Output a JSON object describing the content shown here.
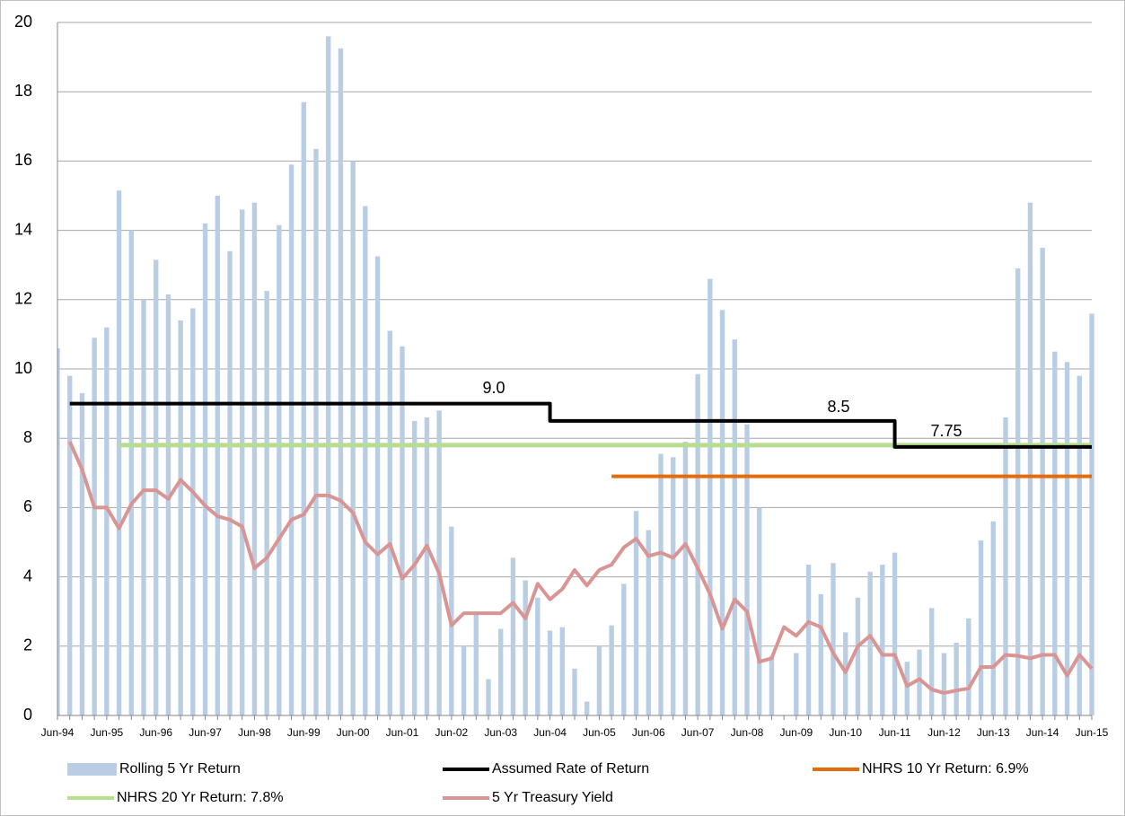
{
  "chart_data": {
    "type": "bar",
    "categories": [
      "Jun-94",
      null,
      null,
      null,
      "Jun-95",
      null,
      null,
      null,
      "Jun-96",
      null,
      null,
      null,
      "Jun-97",
      null,
      null,
      null,
      "Jun-98",
      null,
      null,
      null,
      "Jun-99",
      null,
      null,
      null,
      "Jun-00",
      null,
      null,
      null,
      "Jun-01",
      null,
      null,
      null,
      "Jun-02",
      null,
      null,
      null,
      "Jun-03",
      null,
      null,
      null,
      "Jun-04",
      null,
      null,
      null,
      "Jun-05",
      null,
      null,
      null,
      "Jun-06",
      null,
      null,
      null,
      "Jun-07",
      null,
      null,
      null,
      "Jun-08",
      null,
      null,
      null,
      "Jun-09",
      null,
      null,
      null,
      "Jun-10",
      null,
      null,
      null,
      "Jun-11",
      null,
      null,
      null,
      "Jun-12",
      null,
      null,
      null,
      "Jun-13",
      null,
      null,
      null,
      "Jun-14",
      null,
      null,
      null,
      "Jun-15"
    ],
    "series": [
      {
        "name": "Rolling 5 Yr Return",
        "type": "bar",
        "color": "#b9cde5",
        "values": [
          10.6,
          9.8,
          9.3,
          10.9,
          11.2,
          15.15,
          14.0,
          12.0,
          13.15,
          12.15,
          11.4,
          11.75,
          14.2,
          15.0,
          13.4,
          14.6,
          14.8,
          12.25,
          14.15,
          15.9,
          17.7,
          16.35,
          19.6,
          19.25,
          16.0,
          14.7,
          13.25,
          11.1,
          10.65,
          8.5,
          8.6,
          8.8,
          5.45,
          2.0,
          2.9,
          1.05,
          2.5,
          4.55,
          3.9,
          3.4,
          2.45,
          2.55,
          1.35,
          0.4,
          2.0,
          2.6,
          3.8,
          5.9,
          5.35,
          7.55,
          7.45,
          7.9,
          9.85,
          12.6,
          11.7,
          10.85,
          8.4,
          6.0,
          1.7,
          0,
          1.8,
          4.35,
          3.5,
          4.4,
          2.4,
          3.4,
          4.15,
          4.35,
          4.7,
          1.55,
          1.9,
          3.1,
          1.8,
          2.1,
          2.8,
          5.05,
          5.6,
          8.6,
          12.9,
          14.8,
          13.5,
          10.5,
          10.2,
          9.8,
          11.6
        ]
      },
      {
        "name": "Assumed Rate of Return",
        "type": "line",
        "step": "after",
        "color": "#000000",
        "values": [
          null,
          9,
          9,
          9,
          9,
          9,
          9,
          9,
          9,
          9,
          9,
          9,
          9,
          9,
          9,
          9,
          9,
          9,
          9,
          9,
          9,
          9,
          9,
          9,
          9,
          9,
          9,
          9,
          9,
          9,
          9,
          9,
          9,
          9,
          9,
          9,
          9,
          9,
          9,
          9,
          8.5,
          8.5,
          8.5,
          8.5,
          8.5,
          8.5,
          8.5,
          8.5,
          8.5,
          8.5,
          8.5,
          8.5,
          8.5,
          8.5,
          8.5,
          8.5,
          8.5,
          8.5,
          8.5,
          8.5,
          8.5,
          8.5,
          8.5,
          8.5,
          8.5,
          8.5,
          8.5,
          8.5,
          7.75,
          7.75,
          7.75,
          7.75,
          7.75,
          7.75,
          7.75,
          7.75,
          7.75,
          7.75,
          7.75,
          7.75,
          7.75,
          7.75,
          7.75,
          7.75,
          7.75
        ]
      },
      {
        "name": "NHRS 10 Yr Return: 6.9%",
        "type": "line",
        "color": "#e46c0a",
        "values": [
          null,
          null,
          null,
          null,
          null,
          null,
          null,
          null,
          null,
          null,
          null,
          null,
          null,
          null,
          null,
          null,
          null,
          null,
          null,
          null,
          null,
          null,
          null,
          null,
          null,
          null,
          null,
          null,
          null,
          null,
          null,
          null,
          null,
          null,
          null,
          null,
          null,
          null,
          null,
          null,
          null,
          null,
          null,
          null,
          null,
          6.9,
          6.9,
          6.9,
          6.9,
          6.9,
          6.9,
          6.9,
          6.9,
          6.9,
          6.9,
          6.9,
          6.9,
          6.9,
          6.9,
          6.9,
          6.9,
          6.9,
          6.9,
          6.9,
          6.9,
          6.9,
          6.9,
          6.9,
          6.9,
          6.9,
          6.9,
          6.9,
          6.9,
          6.9,
          6.9,
          6.9,
          6.9,
          6.9,
          6.9,
          6.9,
          6.9,
          6.9,
          6.9,
          6.9,
          6.9
        ]
      },
      {
        "name": "NHRS 20 Yr Return: 7.8%",
        "type": "line",
        "color": "#b7dd90",
        "values": [
          null,
          null,
          null,
          null,
          null,
          7.8,
          7.8,
          7.8,
          7.8,
          7.8,
          7.8,
          7.8,
          7.8,
          7.8,
          7.8,
          7.8,
          7.8,
          7.8,
          7.8,
          7.8,
          7.8,
          7.8,
          7.8,
          7.8,
          7.8,
          7.8,
          7.8,
          7.8,
          7.8,
          7.8,
          7.8,
          7.8,
          7.8,
          7.8,
          7.8,
          7.8,
          7.8,
          7.8,
          7.8,
          7.8,
          7.8,
          7.8,
          7.8,
          7.8,
          7.8,
          7.8,
          7.8,
          7.8,
          7.8,
          7.8,
          7.8,
          7.8,
          7.8,
          7.8,
          7.8,
          7.8,
          7.8,
          7.8,
          7.8,
          7.8,
          7.8,
          7.8,
          7.8,
          7.8,
          7.8,
          7.8,
          7.8,
          7.8,
          7.8,
          7.8,
          7.8,
          7.8,
          7.8,
          7.8,
          7.8,
          7.8,
          7.8,
          7.8,
          7.8,
          7.8,
          7.8,
          7.8,
          7.8,
          7.8,
          7.8
        ]
      },
      {
        "name": "5 Yr Treasury Yield",
        "type": "line",
        "color": "#d99594",
        "values": [
          null,
          7.9,
          7.1,
          6.0,
          6.0,
          5.4,
          6.1,
          6.5,
          6.5,
          6.25,
          6.8,
          6.45,
          6.05,
          5.75,
          5.65,
          5.45,
          4.25,
          4.55,
          5.1,
          5.65,
          5.8,
          6.35,
          6.35,
          6.2,
          5.85,
          5.0,
          4.65,
          4.95,
          3.95,
          4.35,
          4.9,
          4.1,
          2.6,
          2.95,
          2.95,
          2.95,
          2.95,
          3.25,
          2.8,
          3.8,
          3.35,
          3.65,
          4.2,
          3.75,
          4.2,
          4.35,
          4.85,
          5.1,
          4.6,
          4.7,
          4.55,
          4.95,
          4.25,
          3.5,
          2.5,
          3.35,
          3.0,
          1.55,
          1.65,
          2.55,
          2.3,
          2.7,
          2.55,
          1.8,
          1.25,
          2.0,
          2.3,
          1.75,
          1.75,
          0.85,
          1.05,
          0.75,
          0.65,
          0.72,
          0.78,
          1.4,
          1.4,
          1.75,
          1.72,
          1.65,
          1.75,
          1.75,
          1.15,
          1.75,
          1.35
        ]
      }
    ],
    "annotations": [
      "9.0",
      "8.5",
      "7.75"
    ],
    "ylim": [
      0,
      20
    ],
    "yticks": [
      0,
      2,
      4,
      6,
      8,
      10,
      12,
      14,
      16,
      18,
      20
    ],
    "grid": true,
    "legend": "bottom"
  }
}
